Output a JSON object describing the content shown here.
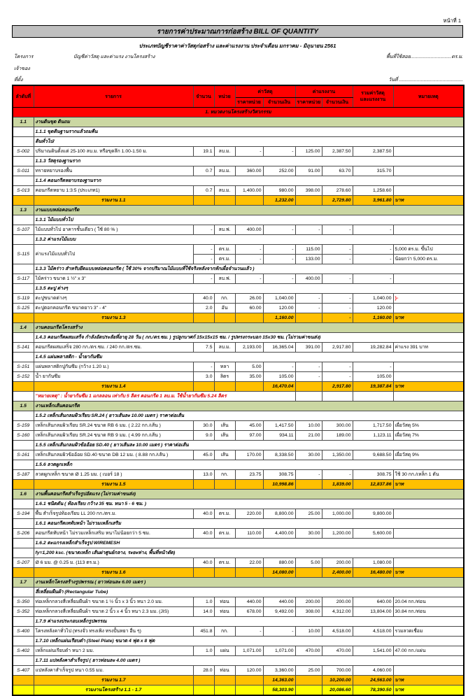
{
  "page": {
    "page_no": "หน้าที่ 1",
    "title": "รายการค่าประมาณการก่อสร้าง BILL OF QUANTITY",
    "subtitle": "ประเภทบัญชีราคาค่าวัสดุก่อสร้าง และค่าแรงงาน ประจำเดือน มกราคม - มิถุนายน 2561"
  },
  "meta": {
    "project_label": "โครงการ",
    "project_value": "บัญชีค่าวัสดุ และค่าแรง งานโครงสร้าง",
    "owner_label": "เจ้าของ",
    "location_label": "ที่ตั้ง",
    "area_label": "พื้นที่ใช้สอย",
    "area_dots": "..............................",
    "area_unit": "ตร.ม.",
    "date_label": "วันที่",
    "date_dots": "..............................................."
  },
  "colors": {
    "header_red": "#ff0000",
    "section_green": "#cbd7a2",
    "total_orange": "#ffc000",
    "grand_yellow": "#ffff00",
    "title_gray": "#bfbfbf",
    "note_red": "#e00000"
  },
  "table": {
    "headers": {
      "no": "ลำดับที่",
      "desc": "รายการ",
      "qty": "จำนวน",
      "unit": "หน่วย",
      "material": "ค่าวัสดุ",
      "labor": "ค่าแรงงาน",
      "unit_price": "ราคาหน่วย",
      "amount": "จำนวนเงิน",
      "total_line1": "รวมค่าวัสดุ",
      "total_line2": "และแรงงาน",
      "remark": "หมายเหตุ"
    },
    "rows": [
      {
        "t": "band",
        "label": "1. หมวดงานโครงสร้างวิศวกรรม"
      },
      {
        "t": "sec",
        "no": "1.1",
        "label": "งานดินขุด ดินถม"
      },
      {
        "t": "sub",
        "label": "1.1.1 ขุดดินฐานรากแล้วถมคืน"
      },
      {
        "t": "sub",
        "label": "ดินทั่วไป/"
      },
      {
        "t": "item",
        "no": "S-002",
        "desc": "ปริมาณดินตั้งแต่ 25-100 ลบ.ม. หรือขุดลึก 1.00-1.50 ม.",
        "q": "19.1",
        "u": "ลบ.ม.",
        "mu": "-",
        "ma": "-",
        "lu": "125.00",
        "la": "2,387.50",
        "tt": "2,387.50",
        "rm": ""
      },
      {
        "t": "sub",
        "label": "1.1.3 วัสดุรองฐานราก"
      },
      {
        "t": "item",
        "no": "S-011",
        "desc": "ทรายหยาบรองพื้น",
        "q": "0.7",
        "u": "ลบ.ม.",
        "mu": "360.00",
        "ma": "252.00",
        "lu": "91.00",
        "la": "63.70",
        "tt": "315.70",
        "rm": ""
      },
      {
        "t": "sub",
        "label": "1.1.4 คอนกรีตหยาบรองฐานราก"
      },
      {
        "t": "item",
        "no": "S-013",
        "desc": "คอนกรีตหยาบ 1:3:5 (ประเภท1)",
        "q": "0.7",
        "u": "ลบ.ม.",
        "mu": "1,400.00",
        "ma": "980.00",
        "lu": "398.00",
        "la": "278.60",
        "tt": "1,258.60",
        "rm": ""
      },
      {
        "t": "total",
        "label": "รวมงาน 1.1",
        "ma": "1,232.00",
        "la": "2,729.80",
        "tt": "3,961.80",
        "rm": "บาท"
      },
      {
        "t": "sec",
        "no": "1.3",
        "label": "งานแบบหล่อคอนกรีต"
      },
      {
        "t": "sub",
        "label": "1.3.1 ไม้แบบทั่วไป"
      },
      {
        "t": "item",
        "no": "S-107",
        "desc": "ไม้แบบทั่วไป อาคารชั้นเดียว ( ใช้ 80 % )",
        "q": "-",
        "u": "ลบ.ฟ.",
        "mu": "400.00",
        "ma": "-",
        "lu": "-",
        "la": "-",
        "tt": "-",
        "rm": ""
      },
      {
        "t": "sub",
        "label": "1.3.2 ค่าแรงไม้แบบ"
      },
      {
        "t": "item2",
        "no": "S-115",
        "desc": "ค่าแรงไม้แบบทั่วไป",
        "lines": [
          {
            "q": "-",
            "u": "ตร.ม.",
            "mu": "-",
            "ma": "-",
            "lu": "115.00",
            "la": "-",
            "tt": "-",
            "rm": "5,000 ตร.ม. ขึ้นไป"
          },
          {
            "q": "-",
            "u": "ตร.ม.",
            "mu": "-",
            "ma": "-",
            "lu": "133.00",
            "la": "-",
            "tt": "-",
            "rm": "น้อยกว่า 5,000 ตร.ม."
          }
        ]
      },
      {
        "t": "sub",
        "label": "1.3.3 ไม้คร่าว สำหรับยึดแบบหล่อคอนกรีต ( ใช้ 30% จากปริมาณไม้แบบที่ใช้จริงหลังจากหักเผื่อจำนวนแล้ว )"
      },
      {
        "t": "item",
        "no": "S-117",
        "desc": "ไม้คร่าว ขนาด 1 ½\" x 3\"",
        "q": "-",
        "u": "ลบ.ฟ.",
        "mu": "-",
        "ma": "-",
        "lu": "400.00",
        "la": "-",
        "tt": "-",
        "rm": ""
      },
      {
        "t": "sub",
        "label": "1.3.5 ตะปู ต่างๆ"
      },
      {
        "t": "item",
        "no": "S-119",
        "desc": "ตะปูขนาดต่างๆ",
        "q": "40.0",
        "u": "กก.",
        "mu": "26.00",
        "ma": "1,040.00",
        "lu": "-",
        "la": "-",
        "tt": "1,040.00",
        "rm": "}-",
        "rf": true
      },
      {
        "t": "item",
        "no": "S-125",
        "desc": "ตะปูตอกคอนกรีต ขนาดยาว 3\" - 4\"",
        "q": "2.0",
        "u": "อัน",
        "mu": "60.00",
        "ma": "120.00",
        "lu": "-",
        "la": "-",
        "tt": "120.00",
        "rm": ""
      },
      {
        "t": "total",
        "label": "รวมงาน 1.3",
        "ma": "1,160.00",
        "la": "-",
        "tt": "1,160.00",
        "rm": "บาท"
      },
      {
        "t": "sec",
        "no": "1.4",
        "label": "งานคอนกรีตโครงสร้าง"
      },
      {
        "t": "sub",
        "label": "1.4.3 คอนกรีตผสมเสร็จ กำลังอัดประลัยที่อายุ 28 วัน ( กก./ตร.ซม. ) รูปลูกบาศก์ 15x15x15 ซม. / รูปทรงกระบอก 15x30 ซม. (ไม่รวมค่าขนส่ง)"
      },
      {
        "t": "item",
        "no": "S-141",
        "desc": "คอนกรีตผสมเสร็จ 280 กก./ตร.ซม. / 240 กก./ตร.ซม.",
        "q": "7.5",
        "u": "ลบ.ม.",
        "mu": "2,193.00",
        "ma": "16,365.04",
        "lu": "391.00",
        "la": "2,917.80",
        "tt": "19,282.84",
        "rm": "ค่าแรง 391 บาท"
      },
      {
        "t": "sub",
        "label": "1.4.5 แผ่นพลาสติก - น้ำยากันซึม"
      },
      {
        "t": "item",
        "no": "S-151",
        "desc": "แผ่นพลาสติกปูกันซึม (กว้าง 1.20 ม.)",
        "q": "-",
        "u": "หลา",
        "mu": "5.00",
        "ma": "-",
        "lu": "-",
        "la": "-",
        "tt": "-",
        "rm": ""
      },
      {
        "t": "item",
        "no": "S-152",
        "desc": "น้ำ ยากันซึม",
        "q": "3.0",
        "u": "ลิตร",
        "mu": "35.00",
        "ma": "105.00",
        "lu": "-",
        "la": "-",
        "tt": "105.00",
        "rm": ""
      },
      {
        "t": "total",
        "label": "รวมงาน 1.4",
        "ma": "16,470.04",
        "la": "2,917.80",
        "tt": "19,387.84",
        "rm": "บาท"
      },
      {
        "t": "note",
        "label": "\"หมายเหตุ\" : น้ำยากันซึม 1 แกลลอน เท่ากับ 5 ลิตร คอนกรีต 1 ลบ.ม. ใช้น้ำยากันซึม 5.24 ลิตร"
      },
      {
        "t": "sec",
        "no": "1.5",
        "label": "งานเหล็กเส้นคอนกรีต"
      },
      {
        "t": "sub",
        "label": "1.5.2 เหล็กเส้นกลมผิวเรียบ SR.24 ( ยาวเส้นละ 10.00 เมตร ) ราคาต่อเส้น"
      },
      {
        "t": "item",
        "no": "S-159",
        "desc": "เหล็กเส้นกลมผิวเรียบ SR.24 ขนาด RB 6 มม. ( 2.22 กก./เส้น )",
        "q": "30.0",
        "u": "เส้น",
        "mu": "45.00",
        "ma": "1,417.50",
        "lu": "10.00",
        "la": "300.00",
        "tt": "1,717.50",
        "rm": "เผื่อวัสดุ 5%"
      },
      {
        "t": "item",
        "no": "S-160",
        "desc": "เหล็กเส้นกลมผิวเรียบ SR.24 ขนาด RB 9 มม. ( 4.99 กก./เส้น )",
        "q": "9.0",
        "u": "เส้น",
        "mu": "97.00",
        "ma": "934.11",
        "lu": "21.00",
        "la": "189.00",
        "tt": "1,123.11",
        "rm": "เผื่อวัสดุ 7%"
      },
      {
        "t": "sub",
        "label": "1.5.5 เหล็กเส้นกลมผิวข้ออ้อย SD.40 ( ยาวเส้นละ 10.00 เมตร ) ราคาต่อเส้น"
      },
      {
        "t": "item",
        "no": "S-161",
        "desc": "เหล็กเส้นกลมผิวข้ออ้อย SD.40 ขนาด DB 12 มม. ( 8.88 กก./เส้น )",
        "q": "45.0",
        "u": "เส้น",
        "mu": "170.00",
        "ma": "8,338.50",
        "lu": "30.00",
        "la": "1,350.00",
        "tt": "9,688.50",
        "rm": "เผื่อวัสดุ 9%"
      },
      {
        "t": "sub",
        "label": "1.5.6 ลวดผูกเหล็ก"
      },
      {
        "t": "item",
        "no": "S-187",
        "desc": "ลวดผูกเหล็ก ขนาด Ø 1.25 มม. ( เบอร์ 18 )",
        "q": "13.0",
        "u": "กก.",
        "mu": "23.75",
        "ma": "308.75",
        "lu": "-",
        "la": "-",
        "tt": "308.75",
        "rm": "ใช้ 30 กก./เหล็ก 1 ตัน"
      },
      {
        "t": "total",
        "label": "รวมงาน 1.5",
        "ma": "10,998.86",
        "la": "1,839.00",
        "tt": "12,837.86",
        "rm": "บาท"
      },
      {
        "t": "sec",
        "no": "1.6",
        "label": "งานพื้นคอนกรีตสำเร็จรูปอัดแรง (ไม่รวมค่าขนส่ง)"
      },
      {
        "t": "sub",
        "label": "1.6.1 ชนิดตัน ( ท้องเรียบ กว้าง 35 ซม. หนา 5 - 6 ซม. )"
      },
      {
        "t": "item",
        "no": "S-194",
        "desc": "พื้น สำเร็จรูปท้องเรียบ LL 200 กก./ตร.ม.",
        "q": "40.0",
        "u": "ตร.ม.",
        "mu": "220.00",
        "ma": "8,800.00",
        "lu": "25.00",
        "la": "1,000.00",
        "tt": "9,800.00",
        "rm": ""
      },
      {
        "t": "sub",
        "label": "1.6.1 คอนกรีตเททับหน้า ไม่รวมเหล็กเสริม"
      },
      {
        "t": "item",
        "no": "S-206",
        "desc": "คอนกรีตทับหน้า ไม่รวมเหล็กเสริม หนาไม่น้อยกว่า 5 ซม.",
        "q": "40.0",
        "u": "ตร.ม.",
        "mu": "110.00",
        "ma": "4,400.00",
        "lu": "30.00",
        "la": "1,200.00",
        "tt": "5,600.00",
        "rm": ""
      },
      {
        "t": "sub",
        "label": "1.6.2 ตะแกรงเหล็กสำเร็จรูป WIREMESH"
      },
      {
        "t": "sub",
        "label": "fy=1,200 ksc. (ขนาดเหล็ก เส้นผ่าศูนย์กลาง, ระยะห่าง, พื้นที่หน้าตัด)"
      },
      {
        "t": "item",
        "no": "S-207",
        "desc": "Ø 6 มม. @ 0.25 ม. (113 ตร.ม.)",
        "q": "40.0",
        "u": "ตร.ม.",
        "mu": "22.00",
        "ma": "880.00",
        "lu": "5.00",
        "la": "200.00",
        "tt": "1,080.00",
        "rm": ""
      },
      {
        "t": "total",
        "label": "รวมงาน 1.6",
        "ma": "14,080.00",
        "la": "2,400.00",
        "tt": "16,480.00",
        "rm": "บาท"
      },
      {
        "t": "sec",
        "no": "1.7",
        "label": "งานเหล็กโครงสร้างรูปพรรณ ( ยาวท่อนละ 6.00 เมตร )"
      },
      {
        "t": "sub",
        "label": "สี่เหลี่ยมผืนผ้า (Rectangular Tube)"
      },
      {
        "t": "item",
        "no": "S-350",
        "desc": "ท่อเหล็กกลวงสี่เหลี่ยมผืนผ้า ขนาด 1 ½ นิ้ว x 3 นิ้ว หนา 2.0 มม.",
        "q": "1.0",
        "u": "ท่อน",
        "mu": "440.00",
        "ma": "440.00",
        "lu": "200.00",
        "la": "200.00",
        "tt": "640.00",
        "rm": "20.04 กก./ท่อน"
      },
      {
        "t": "item",
        "no": "S-352",
        "desc": "ท่อเหล็กกลวงสี่เหลี่ยมผืนผ้า ขนาด 2 นิ้ว x 4 นิ้ว หนา 2.3 มม. (JIS)",
        "q": "14.0",
        "u": "ท่อน",
        "mu": "678.00",
        "ma": "9,492.00",
        "lu": "308.00",
        "la": "4,312.00",
        "tt": "13,804.00",
        "rm": "30.84 กก./ท่อน"
      },
      {
        "t": "sub",
        "label": "1.7.9 ค่าแรงประกอบเหล็กรูปพรรณ"
      },
      {
        "t": "item",
        "no": "S-400",
        "desc": "โครงหลังคาทั่วไป (ทรงจั่ว ทรงเพิง ทรงปั้นหยา อื่น ๆ)",
        "q": "451.8",
        "u": "กก.",
        "mu": "-",
        "ma": "-",
        "lu": "10.00",
        "la": "4,518.00",
        "tt": "4,518.00",
        "rm": "รวมลวดเชื่อม"
      },
      {
        "t": "sub",
        "label": "1.7.10 เหล็กแผ่นเรียบดำ (Steel Plate) ขนาด 4 ฟุต x 8 ฟุต"
      },
      {
        "t": "item",
        "no": "S-402",
        "desc": "เหล็กแผ่นเรียบดำ หนา 2 มม.",
        "q": "1.0",
        "u": "แผ่น",
        "mu": "1,071.00",
        "ma": "1,071.00",
        "lu": "470.00",
        "la": "470.00",
        "tt": "1,541.00",
        "rm": "47.00 กก./แผ่น"
      },
      {
        "t": "sub",
        "label": "1.7.11 แปหลังคาสำเร็จรูป ( ยาวท่อนละ 4.00 เมตร )"
      },
      {
        "t": "item",
        "no": "S-407",
        "desc": "แปหลังคาสำเร็จรูป หนา 0.55 มม.",
        "q": "28.0",
        "u": "ท่อน",
        "mu": "120.00",
        "ma": "3,360.00",
        "lu": "25.00",
        "la": "700.00",
        "tt": "4,060.00",
        "rm": ""
      },
      {
        "t": "total",
        "label": "รวมงาน 1.7",
        "ma": "14,363.00",
        "la": "10,200.00",
        "tt": "24,563.00",
        "rm": "บาท"
      },
      {
        "t": "grand",
        "label": "รวมงานโครงสร้าง 1.1 - 1.7",
        "ma": "58,303.90",
        "la": "20,086.60",
        "tt": "78,390.50",
        "rm": "บาท"
      }
    ]
  }
}
